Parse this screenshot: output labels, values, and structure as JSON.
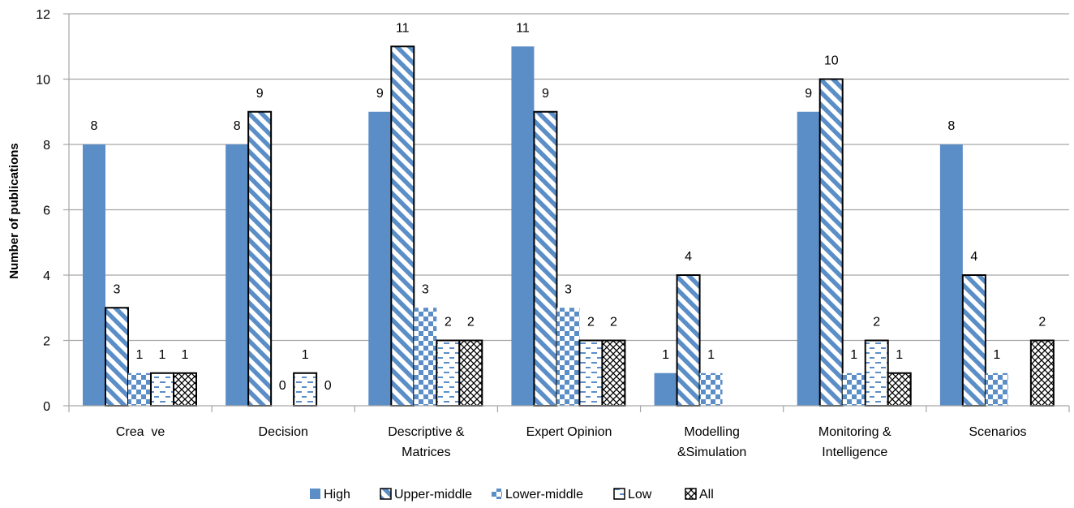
{
  "chart_data": {
    "type": "bar",
    "ylabel": "Number of publications",
    "xlabel": "",
    "ylim": [
      0,
      12
    ],
    "yticks": [
      0,
      2,
      4,
      6,
      8,
      10,
      12
    ],
    "grid": true,
    "legend_position": "bottom",
    "categories": [
      [
        "Crea  ve"
      ],
      [
        "Decision"
      ],
      [
        "Descriptive &",
        "Matrices"
      ],
      [
        "Expert Opinion"
      ],
      [
        "Modelling",
        "&Simulation"
      ],
      [
        "Monitoring &",
        "Intelligence"
      ],
      [
        "Scenarios"
      ]
    ],
    "series": [
      {
        "name": "High",
        "pattern": "solid",
        "color": "#5b8ec7",
        "values": [
          8,
          8,
          9,
          11,
          1,
          9,
          8
        ],
        "labels": [
          "8",
          "8",
          "9",
          "11",
          "1",
          "9",
          "8"
        ]
      },
      {
        "name": "Upper-middle",
        "pattern": "diagonal-stripes",
        "color": "#5b8ec7",
        "values": [
          3,
          9,
          11,
          9,
          4,
          10,
          4
        ],
        "labels": [
          "3",
          "9",
          "11",
          "9",
          "4",
          "10",
          "4"
        ]
      },
      {
        "name": "Lower-middle",
        "pattern": "checker",
        "color": "#5b8ec7",
        "values": [
          1,
          0,
          3,
          3,
          1,
          1,
          1
        ],
        "labels": [
          "1",
          "0",
          "3",
          "3",
          "1",
          "1",
          "1"
        ]
      },
      {
        "name": "Low",
        "pattern": "dashes",
        "color": "#5b8ec7",
        "values": [
          1,
          1,
          2,
          2,
          0,
          2,
          0
        ],
        "labels": [
          "1",
          "1",
          "2",
          "2",
          "",
          "2",
          ""
        ]
      },
      {
        "name": "All",
        "pattern": "crosshatch",
        "color": "#000000",
        "values": [
          1,
          0,
          2,
          2,
          0,
          1,
          2
        ],
        "labels": [
          "1",
          "0",
          "2",
          "2",
          "",
          "1",
          "2"
        ]
      }
    ]
  }
}
